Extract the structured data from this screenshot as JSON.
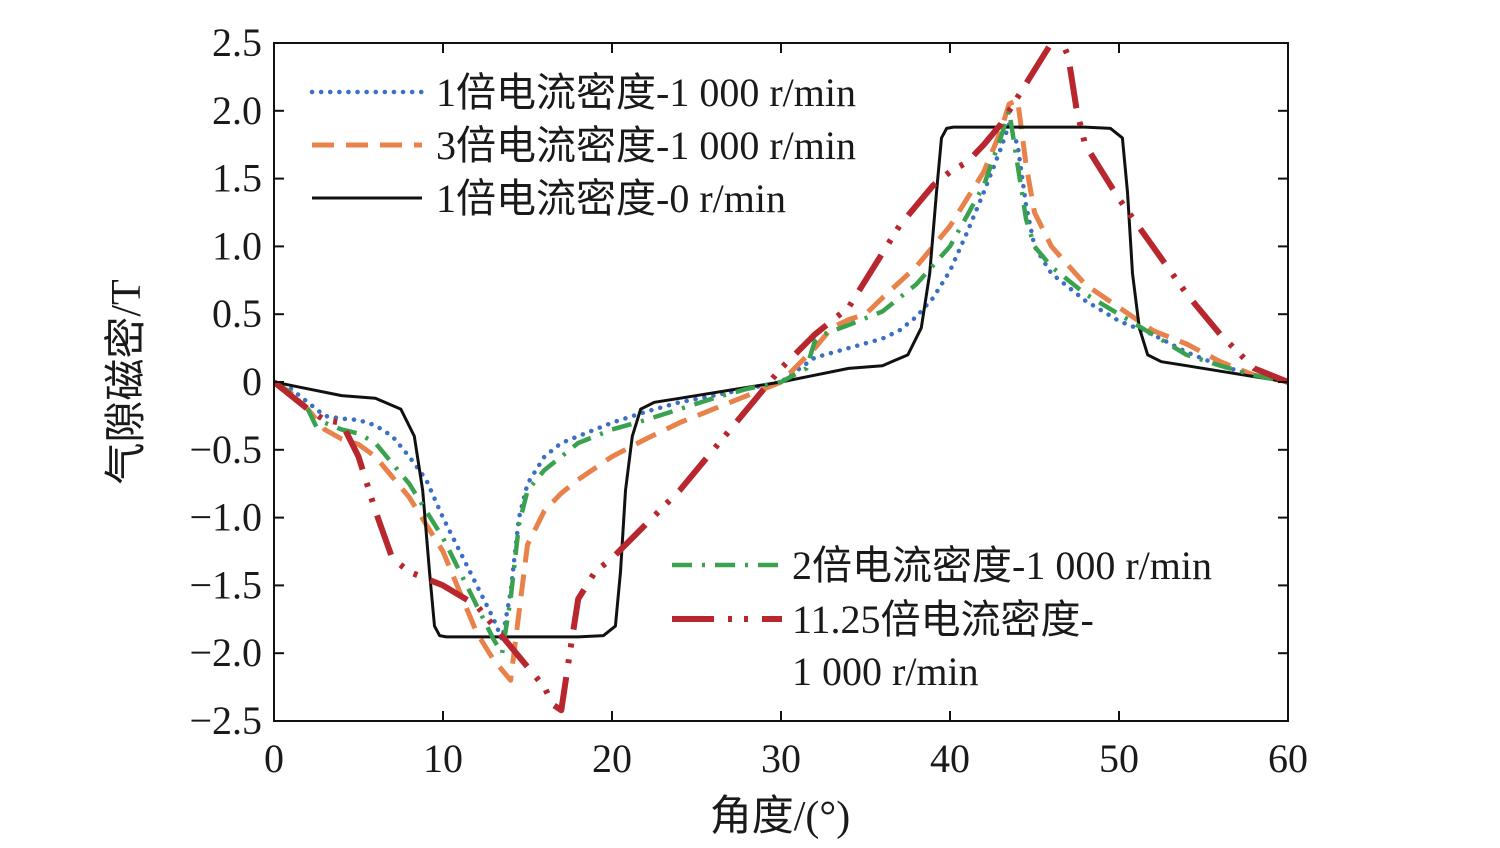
{
  "chart_data": {
    "type": "line",
    "title": "",
    "xlabel": "角度/(°)",
    "ylabel": "气隙磁密/T",
    "xlim": [
      0,
      60
    ],
    "ylim": [
      -2.5,
      2.5
    ],
    "x_ticks": [
      0,
      10,
      20,
      30,
      40,
      50,
      60
    ],
    "x_tick_labels": [
      "0",
      "10",
      "20",
      "30",
      "40",
      "50",
      "60"
    ],
    "y_ticks": [
      2.5,
      2.0,
      1.5,
      1.0,
      0.5,
      0,
      -0.5,
      -1.0,
      -1.5,
      -2.0,
      -2.5
    ],
    "y_tick_labels": [
      "2.5",
      "2.0",
      "1.5",
      "1.0",
      "0.5",
      "0",
      "−0.5",
      "−1.0",
      "−1.5",
      "−2.0",
      "−2.5"
    ],
    "grid": false,
    "legend": {
      "placement_upper": "top-left",
      "placement_lower": "bottom-right",
      "upper_entries": [
        "1倍电流密度-1 000 r/min",
        "3倍电流密度-1 000 r/min",
        "1倍电流密度-0 r/min"
      ],
      "lower_entries": [
        [
          "2倍电流密度-1 000 r/min"
        ],
        [
          "11.25倍电流密度-",
          "1 000 r/min"
        ]
      ]
    },
    "series": [
      {
        "name": "1倍电流密度-1 000 r/min",
        "color": "#3a6fc4",
        "style": "dotted",
        "x": [
          0,
          1,
          2,
          3,
          4,
          5,
          6,
          7,
          8,
          9,
          10,
          11,
          12,
          13,
          13.5,
          14,
          14.5,
          15,
          16,
          17,
          18,
          20,
          22,
          24,
          26,
          28,
          30,
          32,
          34,
          36,
          37,
          38,
          39,
          40,
          41,
          42,
          43,
          43.5,
          44,
          44.5,
          45,
          46,
          48,
          50,
          52,
          54,
          56,
          58,
          60
        ],
        "y": [
          0,
          -0.05,
          -0.15,
          -0.25,
          -0.27,
          -0.28,
          -0.32,
          -0.4,
          -0.55,
          -0.72,
          -1.0,
          -1.25,
          -1.5,
          -1.75,
          -1.9,
          -1.55,
          -1.0,
          -0.75,
          -0.55,
          -0.45,
          -0.4,
          -0.3,
          -0.22,
          -0.15,
          -0.1,
          -0.05,
          0.0,
          0.18,
          0.25,
          0.32,
          0.38,
          0.48,
          0.62,
          0.82,
          1.1,
          1.4,
          1.72,
          1.9,
          1.75,
          1.3,
          1.0,
          0.8,
          0.6,
          0.45,
          0.35,
          0.22,
          0.12,
          0.05,
          0
        ]
      },
      {
        "name": "3倍电流密度-1 000 r/min",
        "color": "#e8824a",
        "style": "dashed",
        "x": [
          0,
          1,
          2,
          3,
          4,
          5,
          6,
          7,
          8,
          9,
          10,
          11,
          12,
          13,
          14,
          14.5,
          15,
          16,
          17,
          18,
          20,
          22,
          24,
          26,
          28,
          30,
          32,
          33,
          34,
          35,
          36,
          38,
          40,
          42,
          43,
          43.5,
          44,
          44.5,
          45,
          46,
          48,
          50,
          52,
          54,
          56,
          58,
          60
        ],
        "y": [
          0,
          -0.08,
          -0.2,
          -0.35,
          -0.42,
          -0.46,
          -0.55,
          -0.7,
          -0.85,
          -1.05,
          -1.25,
          -1.55,
          -1.85,
          -2.05,
          -2.2,
          -1.7,
          -1.2,
          -0.95,
          -0.82,
          -0.72,
          -0.55,
          -0.42,
          -0.3,
          -0.2,
          -0.1,
          0.0,
          0.25,
          0.4,
          0.46,
          0.5,
          0.62,
          0.85,
          1.15,
          1.55,
          1.85,
          2.05,
          2.08,
          1.6,
          1.25,
          1.0,
          0.72,
          0.55,
          0.38,
          0.28,
          0.15,
          0.05,
          0
        ]
      },
      {
        "name": "1倍电流密度-0 r/min",
        "color": "#111111",
        "style": "solid",
        "x": [
          0,
          2,
          4,
          6,
          7.5,
          8.3,
          8.8,
          9.2,
          9.5,
          9.8,
          10.2,
          12,
          14,
          16,
          18,
          19.5,
          20.2,
          20.5,
          20.8,
          21.2,
          21.7,
          22.5,
          24,
          26,
          28,
          30,
          32,
          34,
          36,
          37.5,
          38.3,
          38.8,
          39.2,
          39.5,
          39.8,
          40.2,
          42,
          44,
          46,
          48,
          49.5,
          50.2,
          50.5,
          50.8,
          51.2,
          51.7,
          52.5,
          54,
          56,
          58,
          60
        ],
        "y": [
          0,
          -0.05,
          -0.1,
          -0.12,
          -0.2,
          -0.4,
          -0.8,
          -1.4,
          -1.8,
          -1.87,
          -1.88,
          -1.88,
          -1.88,
          -1.88,
          -1.88,
          -1.87,
          -1.8,
          -1.4,
          -0.8,
          -0.4,
          -0.2,
          -0.15,
          -0.12,
          -0.08,
          -0.04,
          0.0,
          0.05,
          0.1,
          0.12,
          0.2,
          0.4,
          0.8,
          1.4,
          1.8,
          1.87,
          1.88,
          1.88,
          1.88,
          1.88,
          1.88,
          1.87,
          1.8,
          1.4,
          0.8,
          0.4,
          0.2,
          0.15,
          0.12,
          0.08,
          0.04,
          0
        ]
      },
      {
        "name": "2倍电流密度-1 000 r/min",
        "color": "#3aa24e",
        "style": "dashdot",
        "x": [
          0,
          1,
          2,
          2.5,
          3,
          4,
          5,
          6,
          7,
          8,
          9,
          10,
          11,
          12,
          13,
          13.5,
          14,
          14.5,
          15,
          16,
          17,
          18,
          20,
          22,
          24,
          26,
          28,
          30,
          31.5,
          32,
          32.5,
          34,
          36,
          38,
          40,
          42,
          43,
          43.5,
          44,
          44.5,
          45,
          46,
          48,
          50,
          52,
          54,
          56,
          58,
          60
        ],
        "y": [
          0,
          -0.08,
          -0.2,
          -0.33,
          -0.3,
          -0.35,
          -0.38,
          -0.45,
          -0.6,
          -0.75,
          -0.95,
          -1.15,
          -1.4,
          -1.65,
          -1.9,
          -2.0,
          -1.6,
          -1.05,
          -0.8,
          -0.65,
          -0.55,
          -0.45,
          -0.35,
          -0.28,
          -0.2,
          -0.12,
          -0.05,
          0.0,
          0.1,
          0.3,
          0.35,
          0.42,
          0.52,
          0.72,
          1.0,
          1.45,
          1.8,
          2.0,
          1.6,
          1.2,
          1.0,
          0.85,
          0.65,
          0.5,
          0.35,
          0.2,
          0.12,
          0.05,
          0
        ]
      },
      {
        "name": "11.25倍电流密度-1 000 r/min",
        "color": "#b8262e",
        "style": "dashdotdot",
        "x": [
          0,
          1,
          2,
          3,
          4,
          5,
          6,
          7,
          8,
          9,
          10,
          12,
          13,
          14,
          15,
          16,
          16.5,
          17,
          17.5,
          18,
          19,
          20,
          22,
          24,
          26,
          28,
          30,
          32,
          34,
          35,
          36,
          37,
          38,
          39,
          40,
          41,
          42,
          43,
          44,
          45,
          45.5,
          46,
          46.5,
          47,
          47.5,
          48,
          49,
          50,
          52,
          54,
          56,
          58,
          60
        ],
        "y": [
          0,
          -0.1,
          -0.2,
          -0.28,
          -0.3,
          -0.55,
          -0.95,
          -1.3,
          -1.4,
          -1.45,
          -1.5,
          -1.65,
          -1.8,
          -1.95,
          -2.1,
          -2.25,
          -2.38,
          -2.42,
          -2.0,
          -1.6,
          -1.4,
          -1.3,
          -1.05,
          -0.8,
          -0.5,
          -0.2,
          0.1,
          0.35,
          0.55,
          0.75,
          0.95,
          1.15,
          1.3,
          1.45,
          1.55,
          1.62,
          1.75,
          1.9,
          2.1,
          2.3,
          2.4,
          2.5,
          2.55,
          2.4,
          2.0,
          1.75,
          1.55,
          1.35,
          1.0,
          0.65,
          0.35,
          0.1,
          0
        ]
      }
    ]
  }
}
